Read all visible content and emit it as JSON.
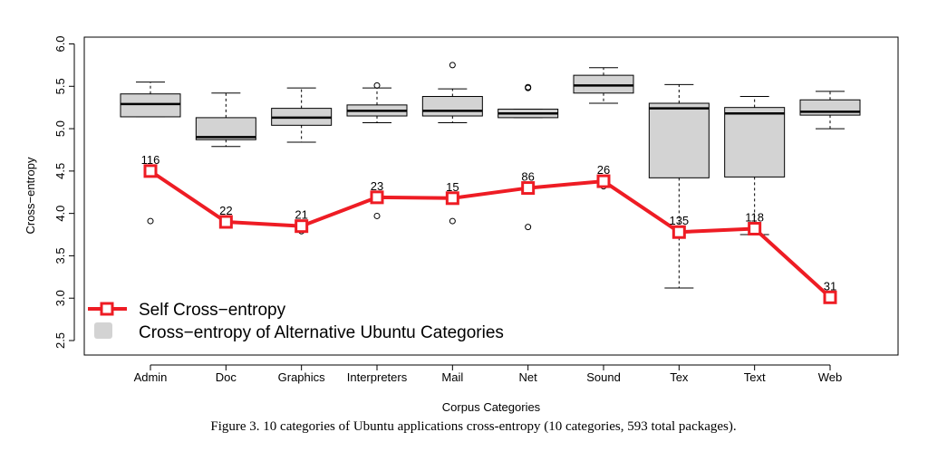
{
  "chart_data": {
    "type": "box",
    "caption": "Figure 3.    10 categories of Ubuntu applications cross-entropy (10 categories, 593 total packages).",
    "xlabel": "Corpus Categories",
    "ylabel": "Cross−entropy",
    "ylim": [
      2.5,
      6.0
    ],
    "yticks": [
      "2.5",
      "3.0",
      "3.5",
      "4.0",
      "4.5",
      "5.0",
      "5.5",
      "6.0"
    ],
    "categories": [
      "Admin",
      "Doc",
      "Graphics",
      "Interpreters",
      "Mail",
      "Net",
      "Sound",
      "Tex",
      "Text",
      "Web"
    ],
    "legend": {
      "position": "bottom-left",
      "entries": [
        "Self Cross−entropy",
        "Cross−entropy of Alternative Ubuntu Categories"
      ]
    },
    "colors": {
      "line": "#ee1c24",
      "box_fill": "#d3d3d3",
      "stroke": "#000000"
    },
    "series": [
      {
        "name": "Cross−entropy of Alternative Ubuntu Categories",
        "kind": "boxplot",
        "boxes": [
          {
            "category": "Admin",
            "whisker_low": 5.14,
            "q1": 5.14,
            "median": 5.29,
            "q3": 5.41,
            "whisker_high": 5.55,
            "outliers": [
              4.48,
              3.91
            ]
          },
          {
            "category": "Doc",
            "whisker_low": 4.79,
            "q1": 4.87,
            "median": 4.9,
            "q3": 5.13,
            "whisker_high": 5.42,
            "outliers": []
          },
          {
            "category": "Graphics",
            "whisker_low": 4.84,
            "q1": 5.04,
            "median": 5.13,
            "q3": 5.24,
            "whisker_high": 5.48,
            "outliers": [
              3.79
            ]
          },
          {
            "category": "Interpreters",
            "whisker_low": 5.07,
            "q1": 5.15,
            "median": 5.21,
            "q3": 5.28,
            "whisker_high": 5.48,
            "outliers": [
              5.51,
              3.97
            ]
          },
          {
            "category": "Mail",
            "whisker_low": 5.07,
            "q1": 5.15,
            "median": 5.21,
            "q3": 5.38,
            "whisker_high": 5.47,
            "outliers": [
              5.75,
              3.91
            ]
          },
          {
            "category": "Net",
            "whisker_low": 5.13,
            "q1": 5.13,
            "median": 5.18,
            "q3": 5.23,
            "whisker_high": 5.23,
            "outliers": [
              5.48,
              5.49,
              4.33,
              3.84
            ]
          },
          {
            "category": "Sound",
            "whisker_low": 5.3,
            "q1": 5.42,
            "median": 5.51,
            "q3": 5.63,
            "whisker_high": 5.72,
            "outliers": [
              4.32
            ]
          },
          {
            "category": "Tex",
            "whisker_low": 3.12,
            "q1": 4.42,
            "median": 5.24,
            "q3": 5.3,
            "whisker_high": 5.52,
            "outliers": []
          },
          {
            "category": "Text",
            "whisker_low": 3.75,
            "q1": 4.43,
            "median": 5.18,
            "q3": 5.25,
            "whisker_high": 5.38,
            "outliers": []
          },
          {
            "category": "Web",
            "whisker_low": 5.0,
            "q1": 5.16,
            "median": 5.2,
            "q3": 5.34,
            "whisker_high": 5.44,
            "outliers": []
          }
        ]
      },
      {
        "name": "Self Cross−entropy",
        "kind": "line",
        "values": [
          4.5,
          3.9,
          3.85,
          4.19,
          4.18,
          4.3,
          4.38,
          3.78,
          3.82,
          3.01
        ],
        "labels": [
          "116",
          "22",
          "21",
          "23",
          "15",
          "86",
          "26",
          "135",
          "118",
          "31"
        ]
      }
    ]
  }
}
